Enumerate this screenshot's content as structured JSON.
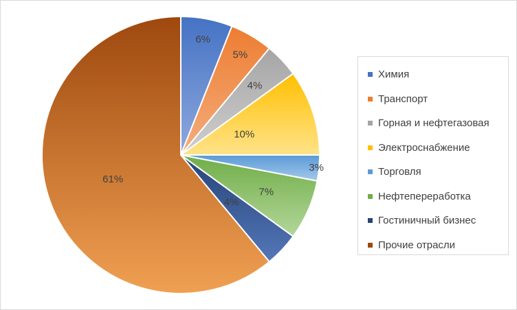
{
  "chart_data": {
    "type": "pie",
    "title": "",
    "legend_position": "right",
    "start_angle_deg": 0,
    "direction": "clockwise",
    "slices": [
      {
        "label": "Химия",
        "value": 6,
        "display": "6%",
        "color": "#4472c4",
        "color_light": "#8fa9de"
      },
      {
        "label": "Транспорт",
        "value": 5,
        "display": "5%",
        "color": "#ed7d31",
        "color_light": "#f4ad7d"
      },
      {
        "label": "Горная и нефтегазовая",
        "value": 4,
        "display": "4%",
        "color": "#a5a5a5",
        "color_light": "#cfcfcf"
      },
      {
        "label": "Электроснабжение",
        "value": 10,
        "display": "10%",
        "color": "#ffc000",
        "color_light": "#ffe38a"
      },
      {
        "label": "Торговля",
        "value": 3,
        "display": "3%",
        "color": "#5b9bd5",
        "color_light": "#a3c8ec"
      },
      {
        "label": "Нефтепереработка",
        "value": 7,
        "display": "7%",
        "color": "#70ad47",
        "color_light": "#b3d79a"
      },
      {
        "label": "Гостиничный бизнес",
        "value": 4,
        "display": "4%",
        "color": "#264478",
        "color_light": "#5477b8"
      },
      {
        "label": "Прочие отрасли",
        "value": 61,
        "display": "61%",
        "color": "#9e480e",
        "color_light": "#f0a052"
      }
    ]
  }
}
